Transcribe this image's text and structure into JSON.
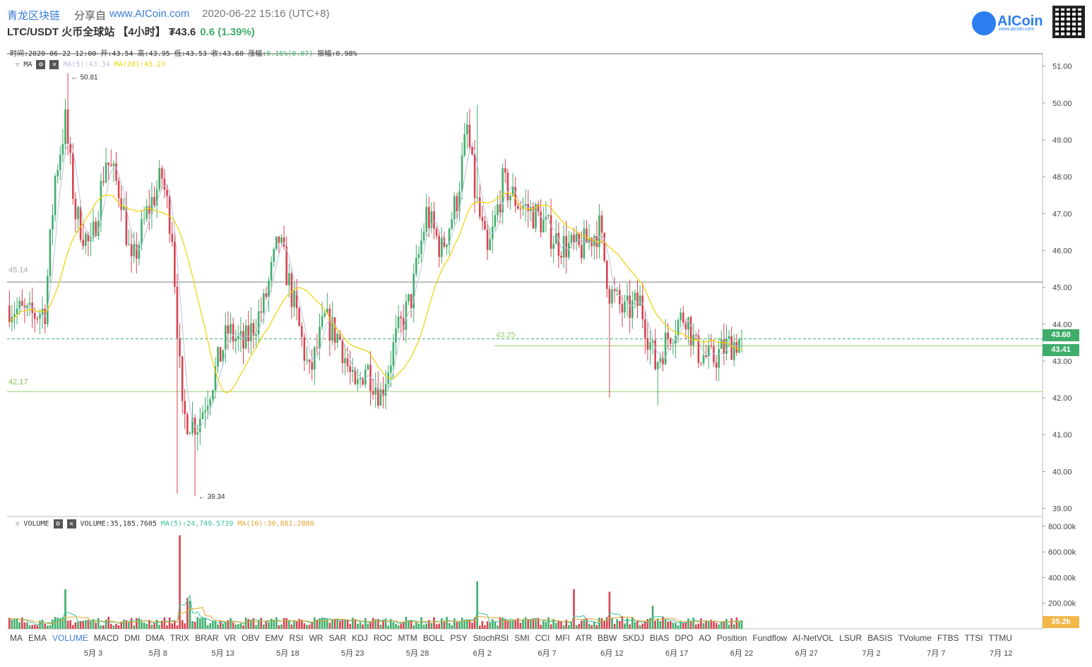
{
  "header": {
    "brand": "青龙区块链",
    "share_label": "分享自",
    "share_url": "www.AICoin.com",
    "datetime": "2020-06-22 15:16 (UTC+8)",
    "pair": "LTC/USDT 火币全球站 【4小时】 ₮43.6",
    "change": "0.6 (1.39%)",
    "logo_text": "AICoin",
    "logo_sub": "www.aicoin.com"
  },
  "ohlc": {
    "time_label": "时间:",
    "time": "2020-06-22 12:00",
    "open_label": "开:",
    "open": "43.54",
    "high_label": "高:",
    "high": "43.95",
    "low_label": "低:",
    "low": "43.53",
    "close_label": "收:",
    "close": "43.60",
    "change_label": "涨幅:",
    "change": "0.16%(0.07)",
    "amp_label": "振幅:",
    "amp": "0.98%"
  },
  "main_indicator": {
    "name": "MA",
    "ma5": "MA(5):43.34",
    "ma20": "MA(20):43.23",
    "gear": "⚙",
    "close": "✕"
  },
  "volume_indicator": {
    "name": "VOLUME",
    "value": "VOLUME:35,185.7605",
    "ma5": "MA(5):24,749.5739",
    "ma10": "MA(10):30,881.2880",
    "gear": "⚙",
    "close": "✕"
  },
  "annotations": {
    "high_mark": "← 50.81",
    "low_mark": "← 39.34",
    "line_45": "45.14",
    "line_42": "42.17",
    "line_43": "43.25"
  },
  "price_axis": [
    "51.00",
    "50.00",
    "49.00",
    "48.00",
    "47.00",
    "46.00",
    "45.00",
    "44.00",
    "43.00",
    "42.00",
    "41.00",
    "40.00",
    "39.00"
  ],
  "price_tags": {
    "current": "43.60",
    "line": "43.41",
    "volume": "35.2k"
  },
  "volume_axis": [
    "800.00k",
    "600.00k",
    "400.00k",
    "200.00k"
  ],
  "tabs": [
    "MA",
    "EMA",
    "VOLUME",
    "MACD",
    "DMI",
    "DMA",
    "TRIX",
    "BRAR",
    "VR",
    "OBV",
    "EMV",
    "RSI",
    "WR",
    "SAR",
    "KDJ",
    "ROC",
    "MTM",
    "BOLL",
    "PSY",
    "StochRSI",
    "SMI",
    "CCI",
    "MFI",
    "ATR",
    "BBW",
    "SKDJ",
    "BIAS",
    "DPO",
    "AO",
    "Position",
    "Fundflow",
    "AI-NetVOL",
    "LSUR",
    "BASIS",
    "TVolume",
    "FTBS",
    "TTSI",
    "TTMU"
  ],
  "active_tab": "VOLUME",
  "dates": [
    "5月 3",
    "5月 8",
    "5月 13",
    "5月 18",
    "5月 23",
    "5月 28",
    "6月 2",
    "6月 7",
    "6月 12",
    "6月 17",
    "6月 22",
    "6月 27",
    "7月 2",
    "7月 7",
    "7月 12"
  ],
  "colors": {
    "up": "#3fae6b",
    "down": "#d9434f",
    "ma5": "#b9c2de",
    "ma20": "#f2d100",
    "accent": "#3b7dd8"
  },
  "chart_data": {
    "type": "candlestick",
    "interval": "4h",
    "ylim": [
      38.8,
      51.3
    ],
    "key_points": [
      {
        "t": 0,
        "close": 44.5
      },
      {
        "t": 8,
        "close": 44.2
      },
      {
        "t": 14,
        "close": 44.4
      },
      {
        "t": 18,
        "close": 48.0
      },
      {
        "t": 22,
        "close": 49.5
      },
      {
        "t": 26,
        "close": 47.0
      },
      {
        "t": 32,
        "close": 46.0
      },
      {
        "t": 38,
        "close": 48.5
      },
      {
        "t": 44,
        "close": 47.5
      },
      {
        "t": 48,
        "close": 45.5
      },
      {
        "t": 54,
        "close": 47.0
      },
      {
        "t": 60,
        "close": 48.0
      },
      {
        "t": 64,
        "close": 46.5
      },
      {
        "t": 68,
        "close": 41.5
      },
      {
        "t": 74,
        "close": 41.3
      },
      {
        "t": 80,
        "close": 42.5
      },
      {
        "t": 86,
        "close": 43.8
      },
      {
        "t": 92,
        "close": 43.4
      },
      {
        "t": 100,
        "close": 44.5
      },
      {
        "t": 106,
        "close": 46.3
      },
      {
        "t": 112,
        "close": 44.5
      },
      {
        "t": 118,
        "close": 42.6
      },
      {
        "t": 124,
        "close": 44.1
      },
      {
        "t": 130,
        "close": 43.6
      },
      {
        "t": 136,
        "close": 42.1
      },
      {
        "t": 140,
        "close": 42.9
      },
      {
        "t": 146,
        "close": 42.1
      },
      {
        "t": 152,
        "close": 43.6
      },
      {
        "t": 158,
        "close": 44.7
      },
      {
        "t": 164,
        "close": 47.0
      },
      {
        "t": 170,
        "close": 46.0
      },
      {
        "t": 176,
        "close": 47.4
      },
      {
        "t": 180,
        "close": 49.3
      },
      {
        "t": 183,
        "close": 47.6
      },
      {
        "t": 188,
        "close": 45.8
      },
      {
        "t": 194,
        "close": 47.8
      },
      {
        "t": 200,
        "close": 47.3
      },
      {
        "t": 208,
        "close": 46.9
      },
      {
        "t": 216,
        "close": 46.2
      },
      {
        "t": 224,
        "close": 46.0
      },
      {
        "t": 232,
        "close": 46.6
      },
      {
        "t": 236,
        "close": 44.9
      },
      {
        "t": 242,
        "close": 44.3
      },
      {
        "t": 248,
        "close": 44.6
      },
      {
        "t": 254,
        "close": 42.9
      },
      {
        "t": 260,
        "close": 43.8
      },
      {
        "t": 266,
        "close": 44.3
      },
      {
        "t": 270,
        "close": 43.3
      },
      {
        "t": 276,
        "close": 43.0
      },
      {
        "t": 282,
        "close": 43.4
      },
      {
        "t": 288,
        "close": 43.6
      }
    ],
    "volume_spikes": [
      {
        "t": 67,
        "volume": 730
      },
      {
        "t": 22,
        "volume": 310
      },
      {
        "t": 184,
        "volume": 370
      },
      {
        "t": 236,
        "volume": 290
      },
      {
        "t": 222,
        "volume": 310
      },
      {
        "t": 253,
        "volume": 180
      },
      {
        "t": 70,
        "volume": 240
      },
      {
        "t": 71,
        "volume": 220
      }
    ]
  }
}
